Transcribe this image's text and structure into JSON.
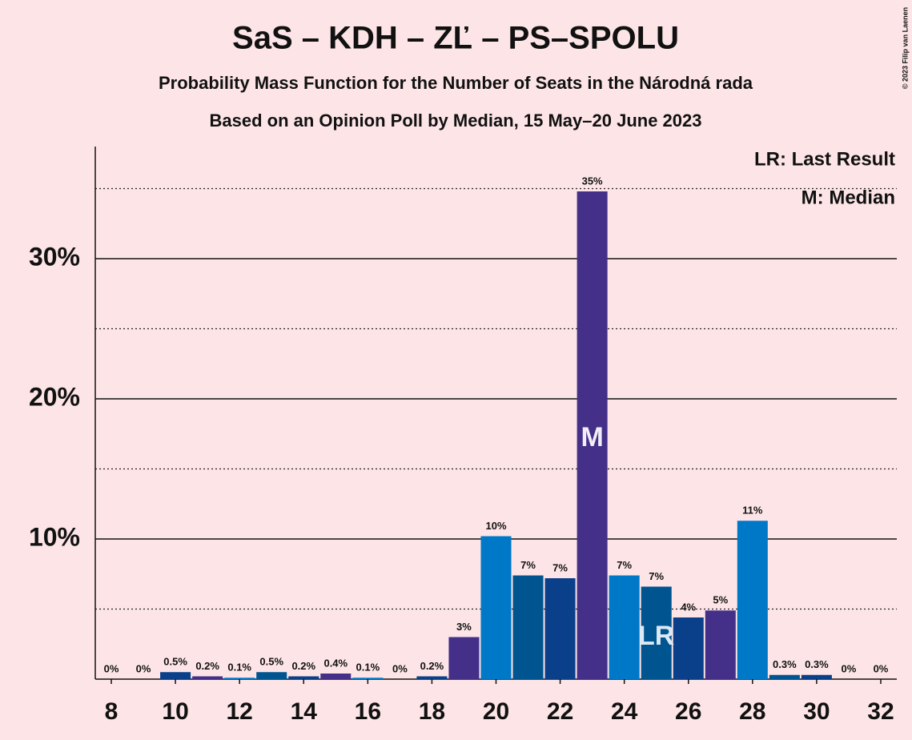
{
  "chart_data": {
    "type": "bar",
    "title": "SaS – KDH – ZĽ – PS–SPOLU",
    "subtitle": "Probability Mass Function for the Number of Seats in the Národná rada",
    "subtitle2": "Based on an Opinion Poll by Median, 15 May–20 June 2023",
    "copyright": "© 2023 Filip van Laenen",
    "legend": [
      "LR: Last Result",
      "M: Median"
    ],
    "x": [
      8,
      9,
      10,
      11,
      12,
      13,
      14,
      15,
      16,
      17,
      18,
      19,
      20,
      21,
      22,
      23,
      24,
      25,
      26,
      27,
      28,
      29,
      30,
      31,
      32
    ],
    "values": [
      0,
      0,
      0.5,
      0.2,
      0.1,
      0.5,
      0.2,
      0.4,
      0.1,
      0,
      0.2,
      3,
      10.2,
      7.4,
      7.2,
      34.8,
      7.4,
      6.6,
      4.4,
      4.9,
      11.3,
      0.3,
      0.3,
      0,
      0
    ],
    "value_labels": [
      "0%",
      "0%",
      "0.5%",
      "0.2%",
      "0.1%",
      "0.5%",
      "0.2%",
      "0.4%",
      "0.1%",
      "0%",
      "0.2%",
      "3%",
      "10%",
      "7%",
      "7%",
      "35%",
      "7%",
      "7%",
      "4%",
      "5%",
      "11%",
      "0.3%",
      "0.3%",
      "0%",
      "0%"
    ],
    "colors": [
      "#0a3f8a",
      "#005590",
      "#0a3f8a",
      "#443088",
      "#0078c8",
      "#005590",
      "#0a3f8a",
      "#443088",
      "#0078c8",
      "#005590",
      "#0a3f8a",
      "#443088",
      "#0078c8",
      "#005590",
      "#0a3f8a",
      "#443088",
      "#0078c8",
      "#005590",
      "#0a3f8a",
      "#443088",
      "#0078c8",
      "#005590",
      "#0a3f8a",
      "#443088",
      "#0078c8"
    ],
    "median": {
      "x": 23,
      "label": "M"
    },
    "last_result": {
      "x": 25,
      "label": "LR"
    },
    "xlim": [
      7.5,
      32.5
    ],
    "xticks": [
      8,
      10,
      12,
      14,
      16,
      18,
      20,
      22,
      24,
      26,
      28,
      30,
      32
    ],
    "ylim": [
      0,
      38
    ],
    "yticks": [
      {
        "value": 10,
        "label": "10%"
      },
      {
        "value": 20,
        "label": "20%"
      },
      {
        "value": 30,
        "label": "30%"
      }
    ],
    "yminor": [
      5,
      15,
      25,
      35
    ],
    "grid": true
  }
}
